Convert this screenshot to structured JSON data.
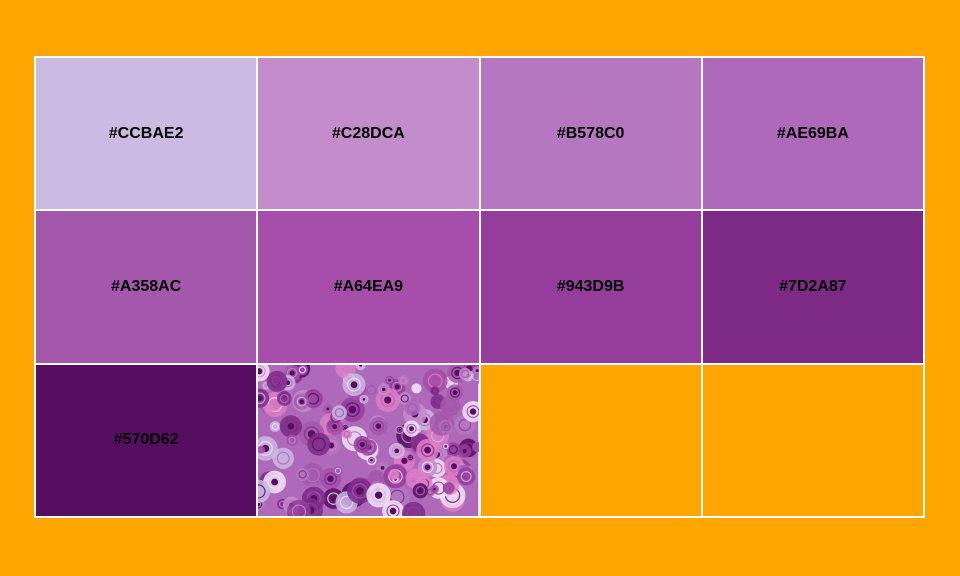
{
  "page": {
    "background_color": "#FFA500",
    "border_color": "#FFFFFF"
  },
  "swatches": [
    {
      "label": "#CCBAE2",
      "color": "#CCBAE2"
    },
    {
      "label": "#C28DCA",
      "color": "#C28DCA"
    },
    {
      "label": "#B578C0",
      "color": "#B578C0"
    },
    {
      "label": "#AE69BA",
      "color": "#AE69BA"
    },
    {
      "label": "#A358AC",
      "color": "#A358AC"
    },
    {
      "label": "#A64EA9",
      "color": "#A64EA9"
    },
    {
      "label": "#943D9B",
      "color": "#943D9B"
    },
    {
      "label": "#7D2A87",
      "color": "#7D2A87"
    },
    {
      "label": "#570D62",
      "color": "#570D62"
    }
  ],
  "source_image": {
    "icon": "abstract-purple-roses-painting",
    "palette_colors": [
      "#CCBAE2",
      "#C28DCA",
      "#B578C0",
      "#AE69BA",
      "#A358AC",
      "#A64EA9",
      "#943D9B",
      "#7D2A87",
      "#570D62",
      "#E07CC6",
      "#F2E4F6"
    ]
  },
  "empty_cell_count": 2
}
